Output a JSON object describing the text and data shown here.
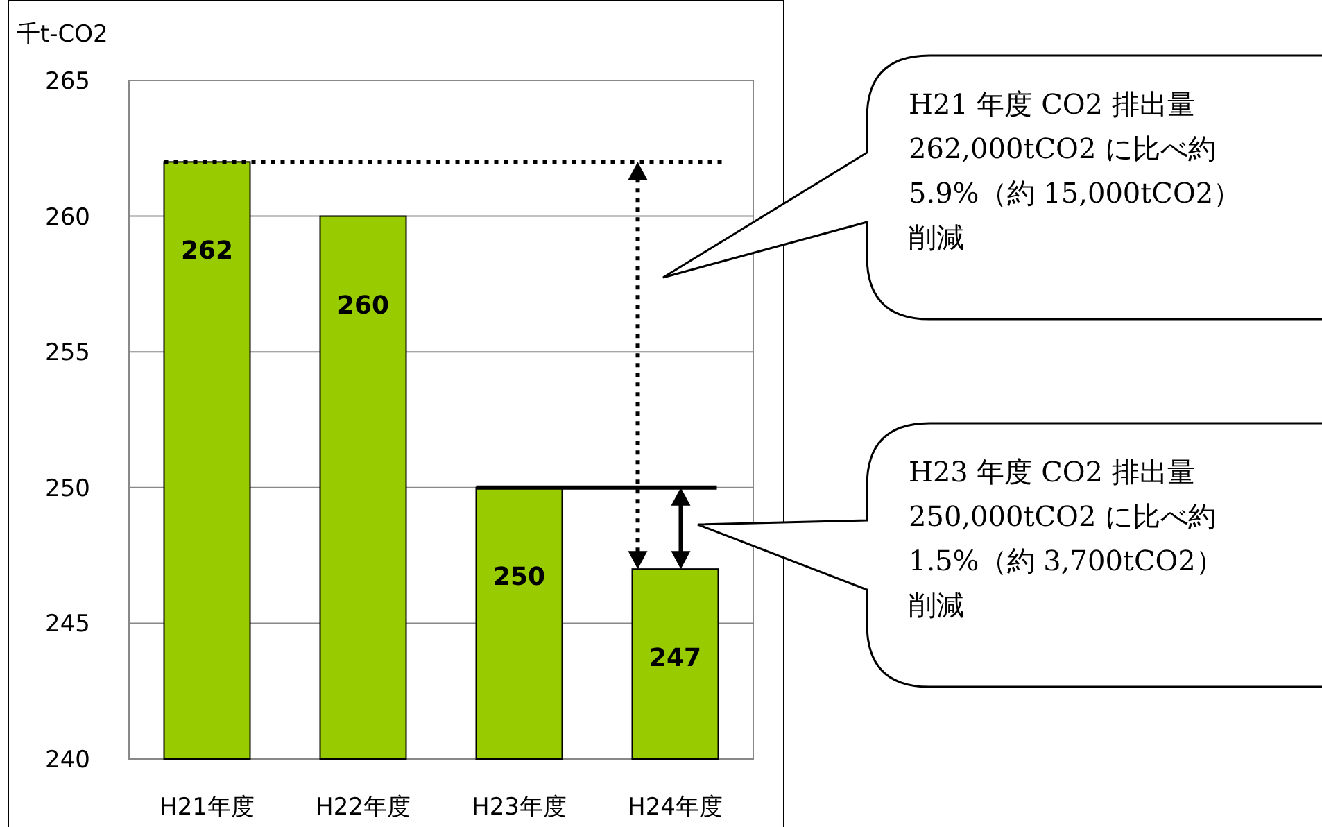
{
  "chart_data": {
    "type": "bar",
    "ylabel": "千t-CO2",
    "categories": [
      "H21年度",
      "H22年度",
      "H23年度",
      "H24年度"
    ],
    "values": [
      262,
      260,
      250,
      247
    ],
    "color": "#99cc00",
    "data_labels": true,
    "ylim": [
      240,
      265
    ],
    "yticks": [
      240,
      245,
      250,
      255,
      260,
      265
    ],
    "grid": "y",
    "ref_lines": [
      {
        "axis": "y",
        "value": 262,
        "line_style": "dotted",
        "color": "#000000"
      },
      {
        "axis": "y",
        "value": 250,
        "line_style": "solid",
        "color": "#000000"
      }
    ],
    "annotations": [
      "H21 年度 CO2 排出量\n262,000tCO2 に比べ約\n5.9%（約 15,000tCO2）削減",
      "H23 年度 CO2 排出量\n250,000tCO2 に比べ約\n1.5%（約 3,700tCO2）削減"
    ]
  }
}
